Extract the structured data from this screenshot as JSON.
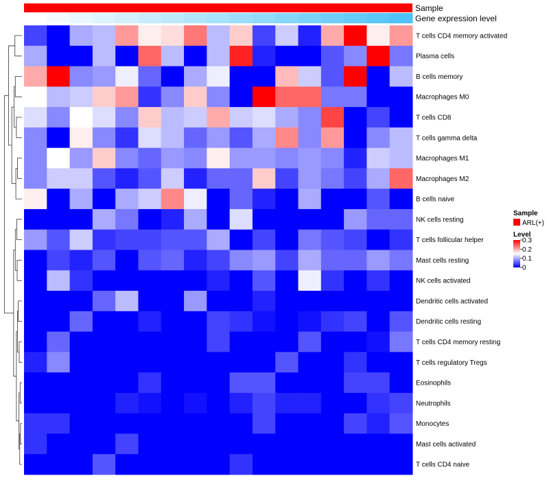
{
  "chart_data": {
    "type": "heatmap",
    "title": "",
    "annotations": [
      {
        "name": "Sample",
        "kind": "categorical",
        "color": "#ff0000",
        "value": "ARL(+)"
      },
      {
        "name": "Gene expression level",
        "kind": "continuous",
        "color_low": "#ffffff",
        "color_high": "#4fc3f7"
      }
    ],
    "rows": [
      "T cells CD4 memory activated",
      "Plasma cells",
      "B cells memory",
      "Macrophages M0",
      "T cells CD8",
      "T cells gamma delta",
      "Macrophages M1",
      "Macrophages M2",
      "B cells naive",
      "NK cells resting",
      "T cells follicular helper",
      "Mast cells resting",
      "NK cells activated",
      "Dendritic cells activated",
      "Dendritic cells resting",
      "T cells CD4 memory resting",
      "T cells regulatory  Tregs",
      "Eosinophils",
      "Neutrophils",
      "Monocytes",
      "Mast cells activated",
      "T cells CD4 naive"
    ],
    "values": [
      [
        0.04,
        0.0,
        0.1,
        0.11,
        0.21,
        0.16,
        0.17,
        0.23,
        0.11,
        0.18,
        0.04,
        0.12,
        0.02,
        0.2,
        0.3,
        0.16,
        0.21
      ],
      [
        0.1,
        0.0,
        0.0,
        0.11,
        0.0,
        0.24,
        0.11,
        0.0,
        0.11,
        0.28,
        0.02,
        0.0,
        0.0,
        0.05,
        0.08,
        0.3,
        0.07
      ],
      [
        0.2,
        0.3,
        0.08,
        0.09,
        0.14,
        0.06,
        0.0,
        0.1,
        0.14,
        0.0,
        0.0,
        0.19,
        0.12,
        0.05,
        0.3,
        0.0,
        0.11
      ],
      [
        0.15,
        0.11,
        0.12,
        0.18,
        0.21,
        0.03,
        0.08,
        0.18,
        0.08,
        0.0,
        0.3,
        0.24,
        0.24,
        0.07,
        0.07,
        0.0,
        0.0
      ],
      [
        0.13,
        0.08,
        0.15,
        0.13,
        0.08,
        0.18,
        0.11,
        0.12,
        0.2,
        0.12,
        0.13,
        0.1,
        0.08,
        0.26,
        0.0,
        0.04,
        0.0
      ],
      [
        0.08,
        0.0,
        0.16,
        0.08,
        0.03,
        0.13,
        0.11,
        0.06,
        0.09,
        0.05,
        0.1,
        0.22,
        0.08,
        0.21,
        0.0,
        0.08,
        0.11
      ],
      [
        0.08,
        0.15,
        0.09,
        0.18,
        0.08,
        0.06,
        0.09,
        0.08,
        0.16,
        0.09,
        0.09,
        0.08,
        0.09,
        0.08,
        0.02,
        0.12,
        0.11
      ],
      [
        0.08,
        0.12,
        0.12,
        0.05,
        0.02,
        0.05,
        0.12,
        0.02,
        0.06,
        0.06,
        0.18,
        0.04,
        0.09,
        0.07,
        0.04,
        0.1,
        0.24
      ],
      [
        0.16,
        0.0,
        0.1,
        0.0,
        0.1,
        0.12,
        0.22,
        0.14,
        0.0,
        0.06,
        0.02,
        0.0,
        0.1,
        0.0,
        0.0,
        0.05,
        0.0
      ],
      [
        0.0,
        0.0,
        0.0,
        0.1,
        0.07,
        0.0,
        0.02,
        0.1,
        0.0,
        0.13,
        0.0,
        0.0,
        0.0,
        0.0,
        0.09,
        0.06,
        0.06
      ],
      [
        0.09,
        0.05,
        0.12,
        0.03,
        0.04,
        0.04,
        0.05,
        0.05,
        0.1,
        0.0,
        0.04,
        0.0,
        0.07,
        0.05,
        0.04,
        0.0,
        0.03
      ],
      [
        0.0,
        0.04,
        0.02,
        0.05,
        0.0,
        0.05,
        0.06,
        0.02,
        0.04,
        0.08,
        0.09,
        0.04,
        0.1,
        0.06,
        0.06,
        0.09,
        0.07
      ],
      [
        0.0,
        0.11,
        0.03,
        0.0,
        0.0,
        0.0,
        0.0,
        0.0,
        0.02,
        0.0,
        0.05,
        0.0,
        0.14,
        0.03,
        0.0,
        0.03,
        0.0
      ],
      [
        0.0,
        0.0,
        0.0,
        0.06,
        0.11,
        0.0,
        0.0,
        0.09,
        0.0,
        0.0,
        0.02,
        0.0,
        0.0,
        0.0,
        0.0,
        0.0,
        0.0
      ],
      [
        0.0,
        0.0,
        0.06,
        0.0,
        0.0,
        0.02,
        0.0,
        0.0,
        0.04,
        0.03,
        0.01,
        0.0,
        0.01,
        0.03,
        0.04,
        0.0,
        0.05
      ],
      [
        0.0,
        0.06,
        0.0,
        0.0,
        0.0,
        0.0,
        0.0,
        0.0,
        0.04,
        0.0,
        0.0,
        0.0,
        0.05,
        0.0,
        0.0,
        0.01,
        0.07
      ],
      [
        0.02,
        0.08,
        0.0,
        0.0,
        0.0,
        0.0,
        0.0,
        0.0,
        0.0,
        0.0,
        0.0,
        0.05,
        0.0,
        0.0,
        0.03,
        0.0,
        0.0
      ],
      [
        0.0,
        0.0,
        0.0,
        0.0,
        0.0,
        0.03,
        0.0,
        0.0,
        0.0,
        0.05,
        0.05,
        0.0,
        0.0,
        0.0,
        0.04,
        0.04,
        0.0
      ],
      [
        0.0,
        0.0,
        0.0,
        0.0,
        0.02,
        0.01,
        0.0,
        0.01,
        0.0,
        0.02,
        0.04,
        0.02,
        0.02,
        0.0,
        0.0,
        0.03,
        0.04
      ],
      [
        0.03,
        0.03,
        0.0,
        0.0,
        0.0,
        0.0,
        0.0,
        0.0,
        0.0,
        0.0,
        0.04,
        0.0,
        0.0,
        0.0,
        0.04,
        0.02,
        0.05
      ],
      [
        0.03,
        0.0,
        0.0,
        0.0,
        0.04,
        0.0,
        0.0,
        0.0,
        0.0,
        0.0,
        0.0,
        0.0,
        0.0,
        0.0,
        0.0,
        0.0,
        0.0
      ],
      [
        0.0,
        0.0,
        0.0,
        0.05,
        0.0,
        0.0,
        0.0,
        0.0,
        0.0,
        0.03,
        0.0,
        0.0,
        0.0,
        0.0,
        0.0,
        0.0,
        0.0
      ]
    ],
    "color_scale": {
      "min": 0,
      "mid": 0.15,
      "max": 0.3,
      "low": "#0000ff",
      "middle": "#ffffff",
      "high": "#ff0000"
    },
    "legend": {
      "placement": "right",
      "sample_title": "Sample",
      "sample_items": [
        {
          "label": "ARL(+)",
          "color": "#ff0000"
        }
      ],
      "level_title": "Level",
      "level_ticks": [
        {
          "value": 0.3,
          "label": "0.3"
        },
        {
          "value": 0.2,
          "label": "0.2"
        },
        {
          "value": 0.1,
          "label": "0.1"
        },
        {
          "value": 0,
          "label": "0"
        }
      ]
    },
    "row_dendrogram": true,
    "column_dendrogram": false
  }
}
